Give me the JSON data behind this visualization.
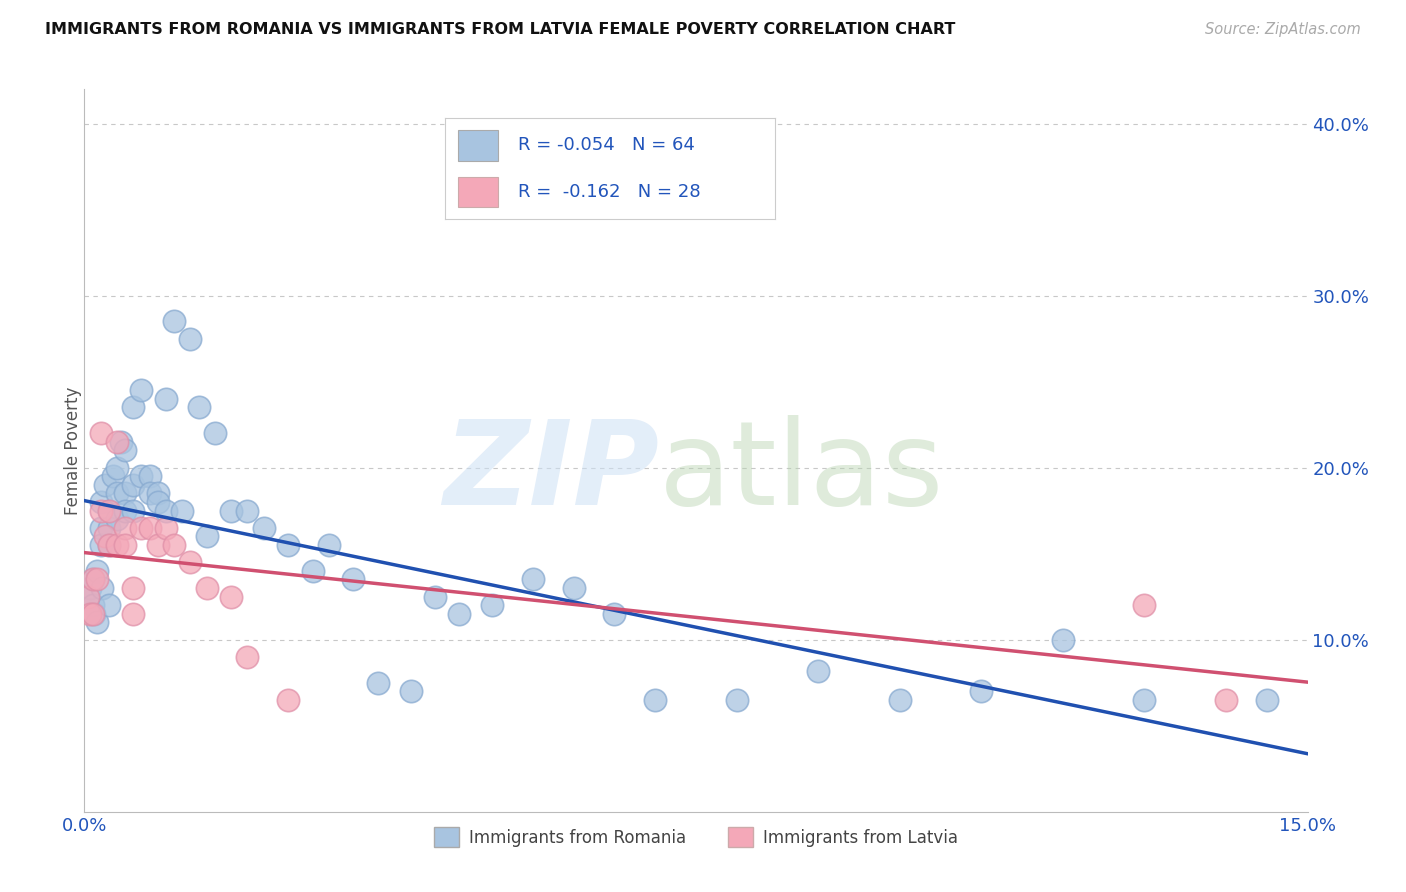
{
  "title": "IMMIGRANTS FROM ROMANIA VS IMMIGRANTS FROM LATVIA FEMALE POVERTY CORRELATION CHART",
  "source": "Source: ZipAtlas.com",
  "ylabel": "Female Poverty",
  "legend1_label": "Immigrants from Romania",
  "legend2_label": "Immigrants from Latvia",
  "legend1_R": "-0.054",
  "legend1_N": "64",
  "legend2_R": "-0.162",
  "legend2_N": "28",
  "romania_color": "#a8c4e0",
  "latvia_color": "#f4a8b8",
  "romania_line_color": "#2050b0",
  "latvia_line_color": "#d05070",
  "background_color": "#ffffff",
  "xlim": [
    0.0,
    0.15
  ],
  "ylim": [
    0.0,
    0.42
  ],
  "xticks": [
    0.0,
    0.15
  ],
  "xticklabels": [
    "0.0%",
    "15.0%"
  ],
  "yticks_right": [
    0.1,
    0.2,
    0.3,
    0.4
  ],
  "yticklabels_right": [
    "10.0%",
    "20.0%",
    "30.0%",
    "40.0%"
  ],
  "romania_x": [
    0.0005,
    0.0007,
    0.001,
    0.001,
    0.0012,
    0.0015,
    0.0015,
    0.002,
    0.002,
    0.002,
    0.0022,
    0.0025,
    0.003,
    0.003,
    0.003,
    0.003,
    0.0035,
    0.004,
    0.004,
    0.004,
    0.0045,
    0.005,
    0.005,
    0.005,
    0.006,
    0.006,
    0.006,
    0.007,
    0.007,
    0.008,
    0.008,
    0.009,
    0.009,
    0.01,
    0.01,
    0.011,
    0.012,
    0.013,
    0.014,
    0.015,
    0.016,
    0.018,
    0.02,
    0.022,
    0.025,
    0.028,
    0.03,
    0.033,
    0.036,
    0.04,
    0.043,
    0.046,
    0.05,
    0.055,
    0.06,
    0.065,
    0.07,
    0.08,
    0.09,
    0.1,
    0.11,
    0.12,
    0.13,
    0.145
  ],
  "romania_y": [
    0.125,
    0.13,
    0.135,
    0.12,
    0.115,
    0.14,
    0.11,
    0.18,
    0.165,
    0.155,
    0.13,
    0.19,
    0.175,
    0.165,
    0.155,
    0.12,
    0.195,
    0.2,
    0.185,
    0.17,
    0.215,
    0.21,
    0.185,
    0.175,
    0.235,
    0.19,
    0.175,
    0.245,
    0.195,
    0.195,
    0.185,
    0.185,
    0.18,
    0.24,
    0.175,
    0.285,
    0.175,
    0.275,
    0.235,
    0.16,
    0.22,
    0.175,
    0.175,
    0.165,
    0.155,
    0.14,
    0.155,
    0.135,
    0.075,
    0.07,
    0.125,
    0.115,
    0.12,
    0.135,
    0.13,
    0.115,
    0.065,
    0.065,
    0.082,
    0.065,
    0.07,
    0.1,
    0.065,
    0.065
  ],
  "latvia_x": [
    0.0005,
    0.0007,
    0.001,
    0.001,
    0.0015,
    0.002,
    0.002,
    0.0025,
    0.003,
    0.003,
    0.004,
    0.004,
    0.005,
    0.005,
    0.006,
    0.006,
    0.007,
    0.008,
    0.009,
    0.01,
    0.011,
    0.013,
    0.015,
    0.018,
    0.02,
    0.025,
    0.13,
    0.14
  ],
  "latvia_y": [
    0.125,
    0.115,
    0.135,
    0.115,
    0.135,
    0.22,
    0.175,
    0.16,
    0.175,
    0.155,
    0.215,
    0.155,
    0.165,
    0.155,
    0.13,
    0.115,
    0.165,
    0.165,
    0.155,
    0.165,
    0.155,
    0.145,
    0.13,
    0.125,
    0.09,
    0.065,
    0.12,
    0.065
  ]
}
